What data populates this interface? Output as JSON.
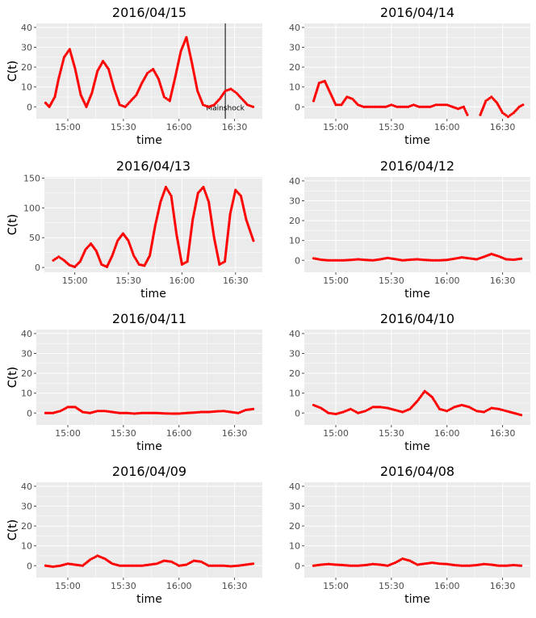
{
  "figure": {
    "panel_bg": "#ebebeb",
    "grid_color": "#ffffff",
    "point_color": "#ff0000",
    "tick_color": "#4d4d4d"
  },
  "chart_data": [
    {
      "type": "scatter",
      "title": "2016/04/15",
      "xlabel": "time",
      "ylabel": "C(t)",
      "xlim": [
        "14:43",
        "16:45"
      ],
      "x_ticks": [
        "15:00",
        "15:30",
        "16:00",
        "16:30"
      ],
      "ylim": [
        -6,
        42
      ],
      "y_ticks": [
        0,
        10,
        20,
        30,
        40
      ],
      "grid": true,
      "series": [
        {
          "x": [
            "14:48",
            "14:50",
            "14:53",
            "14:55",
            "14:58",
            "15:01",
            "15:04",
            "15:07",
            "15:10",
            "15:13",
            "15:16",
            "15:19",
            "15:22",
            "15:25",
            "15:28",
            "15:31",
            "15:34",
            "15:37",
            "15:40",
            "15:43",
            "15:46",
            "15:49",
            "15:52",
            "15:55",
            "15:58",
            "16:01",
            "16:04",
            "16:07",
            "16:10",
            "16:13",
            "16:16",
            "16:19",
            "16:22",
            "16:25",
            "16:28",
            "16:31",
            "16:34",
            "16:37",
            "16:40"
          ],
          "y": [
            2,
            0,
            5,
            14,
            25,
            29,
            19,
            6,
            0,
            7,
            18,
            23,
            19,
            9,
            1,
            0,
            3,
            6,
            12,
            17,
            19,
            14,
            5,
            3,
            15,
            28,
            35,
            22,
            8,
            1,
            0,
            1,
            4,
            8,
            9,
            7,
            4,
            1,
            0
          ]
        }
      ],
      "annotations": [
        {
          "text": "Mainshock",
          "x": "16:25"
        }
      ]
    },
    {
      "type": "scatter",
      "title": "2016/04/14",
      "xlabel": "time",
      "ylabel": "C(t)",
      "xlim": [
        "14:43",
        "16:45"
      ],
      "x_ticks": [
        "15:00",
        "15:30",
        "16:00",
        "16:30"
      ],
      "ylim": [
        -6,
        42
      ],
      "y_ticks": [
        0,
        10,
        20,
        30,
        40
      ],
      "grid": true,
      "series": [
        {
          "x": [
            "14:48",
            "14:51",
            "14:54",
            "14:57",
            "15:00",
            "15:03",
            "15:06",
            "15:09",
            "15:12",
            "15:15",
            "15:18",
            "15:21",
            "15:24",
            "15:27",
            "15:30",
            "15:33",
            "15:36",
            "15:39",
            "15:42",
            "15:45",
            "15:48",
            "15:51",
            "15:54",
            "15:57",
            "16:00",
            "16:03",
            "16:06",
            "16:09",
            "16:11",
            null,
            "16:18",
            "16:21",
            "16:24",
            "16:27",
            "16:30",
            "16:33",
            "16:36",
            "16:39",
            "16:41"
          ],
          "y": [
            3,
            12,
            13,
            7,
            1,
            1,
            5,
            4,
            1,
            0,
            0,
            0,
            0,
            0,
            1,
            0,
            0,
            0,
            1,
            0,
            0,
            0,
            1,
            1,
            1,
            0,
            -1,
            0,
            -4,
            null,
            -4,
            3,
            5,
            2,
            -3,
            -5,
            -3,
            0,
            1
          ]
        }
      ]
    },
    {
      "type": "scatter",
      "title": "2016/04/13",
      "xlabel": "time",
      "ylabel": "C(t)",
      "xlim": [
        "14:43",
        "16:45"
      ],
      "x_ticks": [
        "15:00",
        "15:30",
        "16:00",
        "16:30"
      ],
      "ylim": [
        -8,
        152
      ],
      "y_ticks": [
        0,
        50,
        100,
        150
      ],
      "grid": true,
      "series": [
        {
          "x": [
            "14:48",
            "14:51",
            "14:54",
            "14:57",
            "15:00",
            "15:03",
            "15:06",
            "15:09",
            "15:12",
            "15:15",
            "15:18",
            "15:21",
            "15:24",
            "15:27",
            "15:30",
            "15:33",
            "15:36",
            "15:39",
            "15:42",
            "15:45",
            "15:48",
            "15:51",
            "15:54",
            "15:57",
            "16:00",
            "16:03",
            "16:06",
            "16:09",
            "16:12",
            "16:15",
            "16:18",
            "16:21",
            "16:24",
            "16:27",
            "16:30",
            "16:33",
            "16:36",
            "16:40"
          ],
          "y": [
            12,
            18,
            12,
            4,
            1,
            10,
            30,
            40,
            28,
            5,
            1,
            20,
            45,
            57,
            45,
            20,
            5,
            3,
            20,
            70,
            110,
            135,
            120,
            55,
            5,
            10,
            80,
            125,
            135,
            110,
            50,
            5,
            10,
            90,
            130,
            120,
            80,
            45
          ]
        }
      ]
    },
    {
      "type": "scatter",
      "title": "2016/04/12",
      "xlabel": "time",
      "ylabel": "C(t)",
      "xlim": [
        "14:43",
        "16:45"
      ],
      "x_ticks": [
        "15:00",
        "15:30",
        "16:00",
        "16:30"
      ],
      "ylim": [
        -6,
        42
      ],
      "y_ticks": [
        0,
        10,
        20,
        30,
        40
      ],
      "grid": true,
      "series": [
        {
          "x": [
            "14:48",
            "14:52",
            "14:56",
            "15:00",
            "15:04",
            "15:08",
            "15:12",
            "15:16",
            "15:20",
            "15:24",
            "15:28",
            "15:32",
            "15:36",
            "15:40",
            "15:44",
            "15:48",
            "15:52",
            "15:56",
            "16:00",
            "16:04",
            "16:08",
            "16:12",
            "16:16",
            "16:20",
            "16:24",
            "16:28",
            "16:32",
            "16:36",
            "16:40"
          ],
          "y": [
            1,
            0.3,
            0,
            0,
            0,
            0.2,
            0.5,
            0.2,
            0,
            0.5,
            1.2,
            0.6,
            0,
            0.3,
            0.5,
            0.2,
            0,
            0,
            0.2,
            0.8,
            1.5,
            1,
            0.5,
            1.8,
            3.2,
            2,
            0.5,
            0.3,
            0.8
          ]
        }
      ]
    },
    {
      "type": "scatter",
      "title": "2016/04/11",
      "xlabel": "time",
      "ylabel": "C(t)",
      "xlim": [
        "14:43",
        "16:45"
      ],
      "x_ticks": [
        "15:00",
        "15:30",
        "16:00",
        "16:30"
      ],
      "ylim": [
        -6,
        42
      ],
      "y_ticks": [
        0,
        10,
        20,
        30,
        40
      ],
      "grid": true,
      "series": [
        {
          "x": [
            "14:48",
            "14:52",
            "14:56",
            "15:00",
            "15:04",
            "15:08",
            "15:12",
            "15:16",
            "15:20",
            "15:24",
            "15:28",
            "15:32",
            "15:36",
            "15:40",
            "15:44",
            "15:48",
            "15:52",
            "15:56",
            "16:00",
            "16:04",
            "16:08",
            "16:12",
            "16:16",
            "16:20",
            "16:24",
            "16:28",
            "16:32",
            "16:36",
            "16:40"
          ],
          "y": [
            0,
            0,
            1,
            3,
            3,
            0.5,
            0,
            1,
            1,
            0.5,
            0,
            0,
            -0.3,
            0,
            0,
            0,
            -0.2,
            -0.3,
            -0.3,
            0,
            0.2,
            0.5,
            0.5,
            0.8,
            1,
            0.5,
            0,
            1.5,
            2
          ]
        }
      ]
    },
    {
      "type": "scatter",
      "title": "2016/04/10",
      "xlabel": "time",
      "ylabel": "C(t)",
      "xlim": [
        "14:43",
        "16:45"
      ],
      "x_ticks": [
        "15:00",
        "15:30",
        "16:00",
        "16:30"
      ],
      "ylim": [
        -6,
        42
      ],
      "y_ticks": [
        0,
        10,
        20,
        30,
        40
      ],
      "grid": true,
      "series": [
        {
          "x": [
            "14:48",
            "14:52",
            "14:56",
            "15:00",
            "15:04",
            "15:08",
            "15:12",
            "15:16",
            "15:20",
            "15:24",
            "15:28",
            "15:32",
            "15:36",
            "15:40",
            "15:44",
            "15:48",
            "15:52",
            "15:56",
            "16:00",
            "16:04",
            "16:08",
            "16:12",
            "16:16",
            "16:20",
            "16:24",
            "16:28",
            "16:32",
            "16:36",
            "16:40"
          ],
          "y": [
            4,
            2.5,
            0,
            -0.5,
            0.5,
            2,
            0,
            1,
            3,
            3,
            2.5,
            1.5,
            0.5,
            2,
            6,
            11,
            8,
            2,
            1,
            3,
            4,
            3,
            1,
            0.5,
            2.5,
            2,
            1,
            0,
            -1
          ]
        }
      ]
    },
    {
      "type": "scatter",
      "title": "2016/04/09",
      "xlabel": "time",
      "ylabel": "C(t)",
      "xlim": [
        "14:43",
        "16:45"
      ],
      "x_ticks": [
        "15:00",
        "15:30",
        "16:00",
        "16:30"
      ],
      "ylim": [
        -6,
        42
      ],
      "y_ticks": [
        0,
        10,
        20,
        30,
        40
      ],
      "grid": true,
      "series": [
        {
          "x": [
            "14:48",
            "14:52",
            "14:56",
            "15:00",
            "15:04",
            "15:08",
            "15:12",
            "15:16",
            "15:20",
            "15:24",
            "15:28",
            "15:32",
            "15:36",
            "15:40",
            "15:44",
            "15:48",
            "15:52",
            "15:56",
            "16:00",
            "16:04",
            "16:08",
            "16:12",
            "16:16",
            "16:20",
            "16:24",
            "16:28",
            "16:32",
            "16:36",
            "16:40"
          ],
          "y": [
            0,
            -0.5,
            0,
            1,
            0.5,
            0,
            3,
            5,
            3.5,
            1,
            0,
            0,
            0,
            0,
            0.5,
            1,
            2.5,
            2,
            0,
            0.5,
            2.5,
            2,
            0,
            0,
            0,
            -0.3,
            0,
            0.5,
            1
          ]
        }
      ]
    },
    {
      "type": "scatter",
      "title": "2016/04/08",
      "xlabel": "time",
      "ylabel": "C(t)",
      "xlim": [
        "14:43",
        "16:45"
      ],
      "x_ticks": [
        "15:00",
        "15:30",
        "16:00",
        "16:30"
      ],
      "ylim": [
        -6,
        42
      ],
      "y_ticks": [
        0,
        10,
        20,
        30,
        40
      ],
      "grid": true,
      "series": [
        {
          "x": [
            "14:48",
            "14:52",
            "14:56",
            "15:00",
            "15:04",
            "15:08",
            "15:12",
            "15:16",
            "15:20",
            "15:24",
            "15:28",
            "15:32",
            "15:36",
            "15:40",
            "15:44",
            "15:48",
            "15:52",
            "15:56",
            "16:00",
            "16:04",
            "16:08",
            "16:12",
            "16:16",
            "16:20",
            "16:24",
            "16:28",
            "16:32",
            "16:36",
            "16:40"
          ],
          "y": [
            0,
            0.5,
            0.8,
            0.5,
            0.3,
            0,
            0,
            0.3,
            0.8,
            0.5,
            0,
            1.5,
            3.5,
            2.5,
            0.5,
            1,
            1.5,
            1,
            0.8,
            0.3,
            0,
            0,
            0.3,
            0.8,
            0.5,
            0,
            0,
            0.3,
            0
          ]
        }
      ]
    }
  ]
}
